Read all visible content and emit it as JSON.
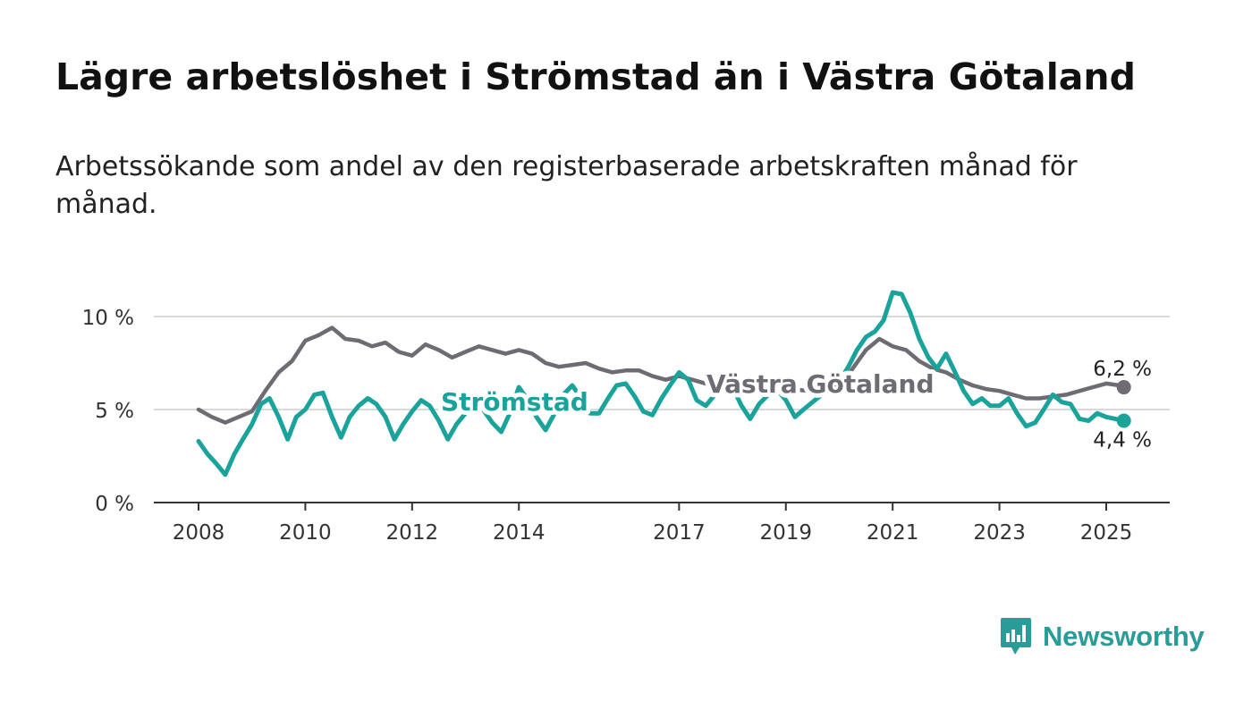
{
  "title": "Lägre arbetslöshet i Strömstad än i Västra Götaland",
  "subtitle": "Arbetssökande som andel av den registerbaserade arbetskraften månad för månad.",
  "brand": {
    "name": "Newsworthy",
    "color": "#2a9c98",
    "icon": "bar-chart-speech-bubble-icon"
  },
  "chart_data": {
    "type": "line",
    "x_type": "time",
    "xlim": [
      2008.0,
      2025.75
    ],
    "ylim": [
      0,
      11.4
    ],
    "y_ticks": [
      {
        "value": 0,
        "label": "0 %"
      },
      {
        "value": 5,
        "label": "5 %"
      },
      {
        "value": 10,
        "label": "10 %"
      }
    ],
    "x_ticks": [
      {
        "value": 2008,
        "label": "2008"
      },
      {
        "value": 2010,
        "label": "2010"
      },
      {
        "value": 2012,
        "label": "2012"
      },
      {
        "value": 2014,
        "label": "2014"
      },
      {
        "value": 2017,
        "label": "2017"
      },
      {
        "value": 2019,
        "label": "2019"
      },
      {
        "value": 2021,
        "label": "2021"
      },
      {
        "value": 2023,
        "label": "2023"
      },
      {
        "value": 2025,
        "label": "2025"
      }
    ],
    "grid": true,
    "series": [
      {
        "name": "Västra Götaland",
        "color": "#6e6b73",
        "end_label": "6,2 %",
        "points": [
          [
            2008.0,
            5.0
          ],
          [
            2008.25,
            4.6
          ],
          [
            2008.5,
            4.3
          ],
          [
            2008.75,
            4.6
          ],
          [
            2009.0,
            4.9
          ],
          [
            2009.25,
            6.0
          ],
          [
            2009.5,
            7.0
          ],
          [
            2009.75,
            7.6
          ],
          [
            2010.0,
            8.7
          ],
          [
            2010.25,
            9.0
          ],
          [
            2010.5,
            9.4
          ],
          [
            2010.75,
            8.8
          ],
          [
            2011.0,
            8.7
          ],
          [
            2011.25,
            8.4
          ],
          [
            2011.5,
            8.6
          ],
          [
            2011.75,
            8.1
          ],
          [
            2012.0,
            7.9
          ],
          [
            2012.25,
            8.5
          ],
          [
            2012.5,
            8.2
          ],
          [
            2012.75,
            7.8
          ],
          [
            2013.0,
            8.1
          ],
          [
            2013.25,
            8.4
          ],
          [
            2013.5,
            8.2
          ],
          [
            2013.75,
            8.0
          ],
          [
            2014.0,
            8.2
          ],
          [
            2014.25,
            8.0
          ],
          [
            2014.5,
            7.5
          ],
          [
            2014.75,
            7.3
          ],
          [
            2015.0,
            7.4
          ],
          [
            2015.25,
            7.5
          ],
          [
            2015.5,
            7.2
          ],
          [
            2015.75,
            7.0
          ],
          [
            2016.0,
            7.1
          ],
          [
            2016.25,
            7.1
          ],
          [
            2016.5,
            6.8
          ],
          [
            2016.75,
            6.6
          ],
          [
            2017.0,
            6.8
          ],
          [
            2017.25,
            6.6
          ],
          [
            2017.5,
            6.4
          ],
          [
            2017.75,
            6.3
          ],
          [
            2018.0,
            6.3
          ],
          [
            2018.5,
            6.1
          ],
          [
            2019.0,
            6.1
          ],
          [
            2019.5,
            6.0
          ],
          [
            2020.0,
            6.2
          ],
          [
            2020.25,
            7.2
          ],
          [
            2020.5,
            8.2
          ],
          [
            2020.75,
            8.8
          ],
          [
            2021.0,
            8.4
          ],
          [
            2021.25,
            8.2
          ],
          [
            2021.5,
            7.6
          ],
          [
            2021.75,
            7.2
          ],
          [
            2022.0,
            7.0
          ],
          [
            2022.25,
            6.6
          ],
          [
            2022.5,
            6.3
          ],
          [
            2022.75,
            6.1
          ],
          [
            2023.0,
            6.0
          ],
          [
            2023.25,
            5.8
          ],
          [
            2023.5,
            5.6
          ],
          [
            2023.75,
            5.6
          ],
          [
            2024.0,
            5.7
          ],
          [
            2024.25,
            5.8
          ],
          [
            2024.5,
            6.0
          ],
          [
            2024.75,
            6.2
          ],
          [
            2025.0,
            6.4
          ],
          [
            2025.25,
            6.3
          ],
          [
            2025.33,
            6.2
          ]
        ]
      },
      {
        "name": "Strömstad",
        "color": "#1aa39a",
        "end_label": "4,4 %",
        "points": [
          [
            2008.0,
            3.3
          ],
          [
            2008.17,
            2.6
          ],
          [
            2008.33,
            2.1
          ],
          [
            2008.5,
            1.5
          ],
          [
            2008.67,
            2.6
          ],
          [
            2008.83,
            3.4
          ],
          [
            2009.0,
            4.2
          ],
          [
            2009.17,
            5.3
          ],
          [
            2009.33,
            5.6
          ],
          [
            2009.5,
            4.6
          ],
          [
            2009.67,
            3.4
          ],
          [
            2009.83,
            4.6
          ],
          [
            2010.0,
            5.0
          ],
          [
            2010.17,
            5.8
          ],
          [
            2010.33,
            5.9
          ],
          [
            2010.5,
            4.6
          ],
          [
            2010.67,
            3.5
          ],
          [
            2010.83,
            4.6
          ],
          [
            2011.0,
            5.2
          ],
          [
            2011.17,
            5.6
          ],
          [
            2011.33,
            5.3
          ],
          [
            2011.5,
            4.6
          ],
          [
            2011.67,
            3.4
          ],
          [
            2011.83,
            4.2
          ],
          [
            2012.0,
            4.9
          ],
          [
            2012.17,
            5.5
          ],
          [
            2012.33,
            5.2
          ],
          [
            2012.5,
            4.4
          ],
          [
            2012.67,
            3.4
          ],
          [
            2012.83,
            4.2
          ],
          [
            2013.0,
            4.8
          ],
          [
            2013.17,
            5.3
          ],
          [
            2013.33,
            5.0
          ],
          [
            2013.5,
            4.3
          ],
          [
            2013.67,
            3.8
          ],
          [
            2013.83,
            4.8
          ],
          [
            2014.0,
            6.2
          ],
          [
            2014.17,
            5.5
          ],
          [
            2014.33,
            4.6
          ],
          [
            2014.5,
            3.9
          ],
          [
            2014.67,
            4.8
          ],
          [
            2014.83,
            5.8
          ],
          [
            2015.0,
            6.3
          ],
          [
            2015.17,
            5.6
          ],
          [
            2015.33,
            4.8
          ],
          [
            2015.5,
            4.8
          ],
          [
            2015.67,
            5.6
          ],
          [
            2015.83,
            6.3
          ],
          [
            2016.0,
            6.4
          ],
          [
            2016.17,
            5.7
          ],
          [
            2016.33,
            4.9
          ],
          [
            2016.5,
            4.7
          ],
          [
            2016.67,
            5.6
          ],
          [
            2016.83,
            6.3
          ],
          [
            2017.0,
            7.0
          ],
          [
            2017.17,
            6.6
          ],
          [
            2017.33,
            5.5
          ],
          [
            2017.5,
            5.2
          ],
          [
            2017.67,
            5.8
          ],
          [
            2017.83,
            6.5
          ],
          [
            2018.0,
            6.2
          ],
          [
            2018.17,
            5.2
          ],
          [
            2018.33,
            4.5
          ],
          [
            2018.5,
            5.3
          ],
          [
            2018.67,
            5.8
          ],
          [
            2018.83,
            6.1
          ],
          [
            2019.0,
            5.5
          ],
          [
            2019.17,
            4.6
          ],
          [
            2019.33,
            5.0
          ],
          [
            2019.5,
            5.4
          ],
          [
            2019.67,
            5.8
          ],
          [
            2019.83,
            6.5
          ],
          [
            2020.0,
            6.5
          ],
          [
            2020.17,
            7.3
          ],
          [
            2020.33,
            8.2
          ],
          [
            2020.5,
            8.9
          ],
          [
            2020.67,
            9.2
          ],
          [
            2020.83,
            9.8
          ],
          [
            2021.0,
            11.3
          ],
          [
            2021.17,
            11.2
          ],
          [
            2021.33,
            10.2
          ],
          [
            2021.5,
            8.8
          ],
          [
            2021.67,
            7.8
          ],
          [
            2021.83,
            7.2
          ],
          [
            2022.0,
            8.0
          ],
          [
            2022.17,
            7.0
          ],
          [
            2022.33,
            6.0
          ],
          [
            2022.5,
            5.3
          ],
          [
            2022.67,
            5.6
          ],
          [
            2022.83,
            5.2
          ],
          [
            2023.0,
            5.2
          ],
          [
            2023.17,
            5.6
          ],
          [
            2023.33,
            4.8
          ],
          [
            2023.5,
            4.1
          ],
          [
            2023.67,
            4.3
          ],
          [
            2023.83,
            5.0
          ],
          [
            2024.0,
            5.8
          ],
          [
            2024.17,
            5.4
          ],
          [
            2024.33,
            5.3
          ],
          [
            2024.5,
            4.5
          ],
          [
            2024.67,
            4.4
          ],
          [
            2024.83,
            4.8
          ],
          [
            2025.0,
            4.6
          ],
          [
            2025.17,
            4.5
          ],
          [
            2025.33,
            4.4
          ]
        ]
      }
    ],
    "series_labels": [
      {
        "series": "Strömstad",
        "text": "Strömstad"
      },
      {
        "series": "Västra Götaland",
        "text": "Västra Götaland"
      }
    ]
  }
}
